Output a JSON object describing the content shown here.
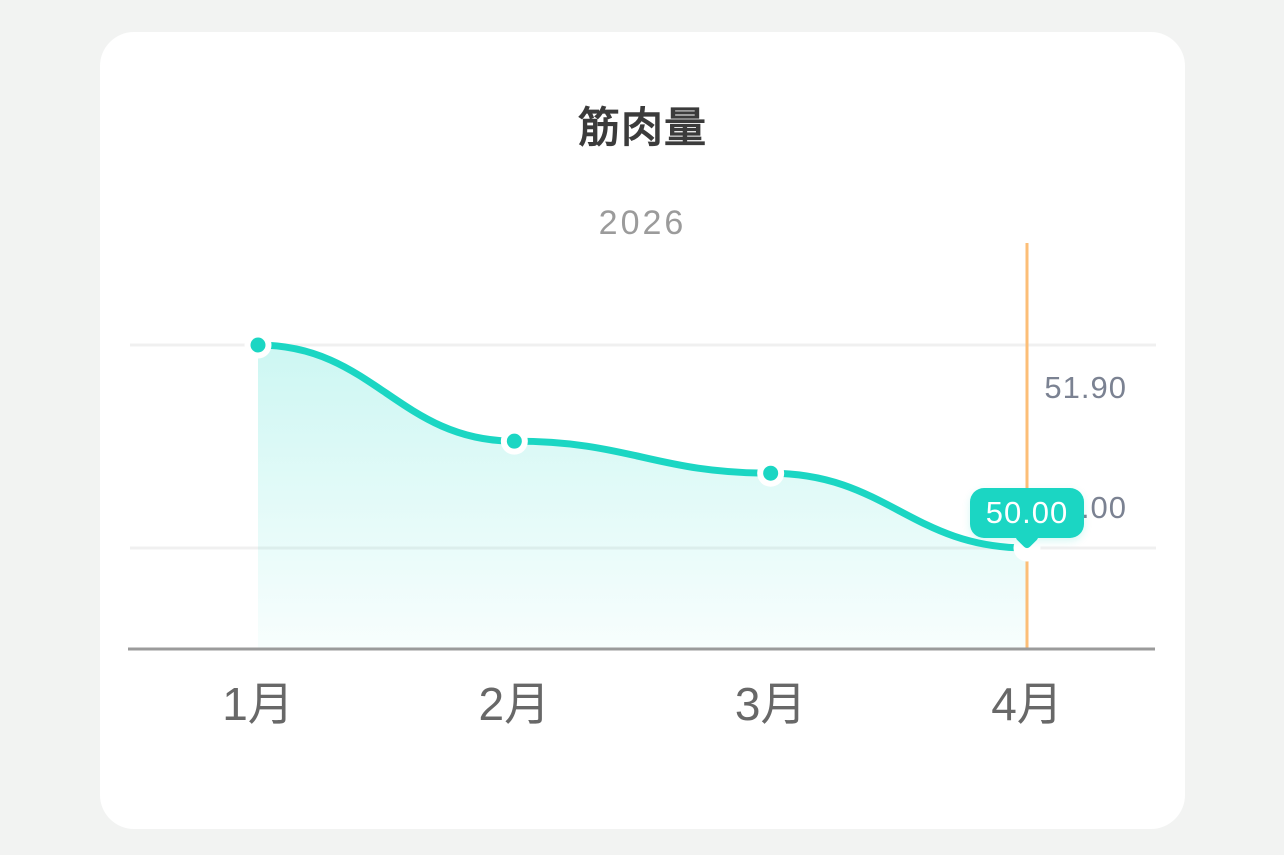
{
  "page": {
    "background_color": "#f2f3f2",
    "card_color": "#ffffff"
  },
  "chart_data": {
    "type": "line",
    "title": "筋肉量",
    "subtitle": "2026",
    "categories": [
      "1月",
      "2月",
      "3月",
      "4月"
    ],
    "series": [
      {
        "name": "筋肉量",
        "values": [
          51.9,
          51.0,
          50.7,
          50.0
        ]
      }
    ],
    "y_gridline_values": [
      51.9,
      50.0
    ],
    "y_axis_labels": [
      "51.90",
      "50.00"
    ],
    "tooltip": {
      "value": "50.00",
      "category": "4月",
      "category_index": 3
    },
    "highlighted_category": "4月",
    "grid": "horizontal-gridlines-only",
    "legend": "none",
    "area_fill": true,
    "smooth": true,
    "colors": {
      "line": "#1bd6c3",
      "area_top": "rgba(26,217,198,0.22)",
      "area_bottom": "rgba(26,217,198,0.03)",
      "crosshair": "#fcbe77",
      "gridline": "#f0f0f0",
      "axis_line": "#9b9b9b",
      "tooltip_bg": "#1bd6c3",
      "tooltip_text": "#ffffff",
      "title_text": "#3b3b3b",
      "subtitle_text": "#9b9b9b",
      "x_label_text": "#686868",
      "y_label_text": "#7b8292"
    }
  }
}
